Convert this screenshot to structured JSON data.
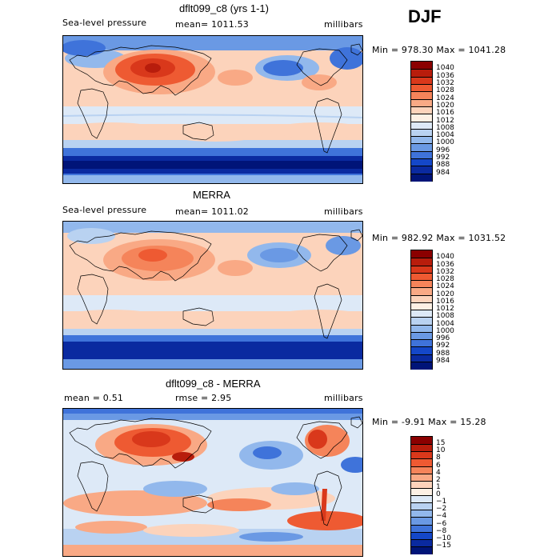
{
  "season": "DJF",
  "panels": [
    {
      "id": "model",
      "title": "dflt099_c8 (yrs 1-1)",
      "left_label": "Sea-level pressure",
      "mid_label": "mean= 1011.53",
      "mid_label_2": "",
      "units": "millibars",
      "minmax": "Min = 978.30  Max = 1041.28",
      "legend": {
        "labels": [
          "1040",
          "1036",
          "1032",
          "1028",
          "1024",
          "1020",
          "1016",
          "1012",
          "1008",
          "1004",
          "1000",
          "996",
          "992",
          "988",
          "984"
        ],
        "colors": [
          "#8b0000",
          "#b81d0c",
          "#d9381b",
          "#ee5a32",
          "#f5845a",
          "#f9a985",
          "#fcd3bb",
          "#fdf0e4",
          "#dde9f7",
          "#b9d2f1",
          "#92b8ec",
          "#6a99e4",
          "#3f73da",
          "#1447c8",
          "#0a2aa0",
          "#001478"
        ]
      }
    },
    {
      "id": "obs",
      "title": "MERRA",
      "left_label": "Sea-level pressure",
      "mid_label": "mean= 1011.02",
      "mid_label_2": "",
      "units": "millibars",
      "minmax": "Min = 982.92  Max = 1031.52",
      "legend": {
        "labels": [
          "1040",
          "1036",
          "1032",
          "1028",
          "1024",
          "1020",
          "1016",
          "1012",
          "1008",
          "1004",
          "1000",
          "996",
          "992",
          "988",
          "984"
        ],
        "colors": [
          "#8b0000",
          "#b81d0c",
          "#d9381b",
          "#ee5a32",
          "#f5845a",
          "#f9a985",
          "#fcd3bb",
          "#fdf0e4",
          "#dde9f7",
          "#b9d2f1",
          "#92b8ec",
          "#6a99e4",
          "#3f73da",
          "#1447c8",
          "#0a2aa0",
          "#001478"
        ]
      }
    },
    {
      "id": "diff",
      "title": "dflt099_c8 - MERRA",
      "left_label": "mean =    0.51",
      "mid_label": "rmse =    2.95",
      "mid_label_2": "",
      "units": "millibars",
      "minmax": "Min =  -9.91  Max =   15.28",
      "legend": {
        "labels": [
          "15",
          "10",
          "8",
          "6",
          "4",
          "2",
          "1",
          "0",
          "−1",
          "−2",
          "−4",
          "−6",
          "−8",
          "−10",
          "−15"
        ],
        "colors": [
          "#8b0000",
          "#b81d0c",
          "#d9381b",
          "#ee5a32",
          "#f5845a",
          "#f9a985",
          "#fcd3bb",
          "#fdf0e4",
          "#dde9f7",
          "#b9d2f1",
          "#92b8ec",
          "#6a99e4",
          "#3f73da",
          "#1447c8",
          "#0a2aa0",
          "#001478"
        ]
      }
    }
  ]
}
